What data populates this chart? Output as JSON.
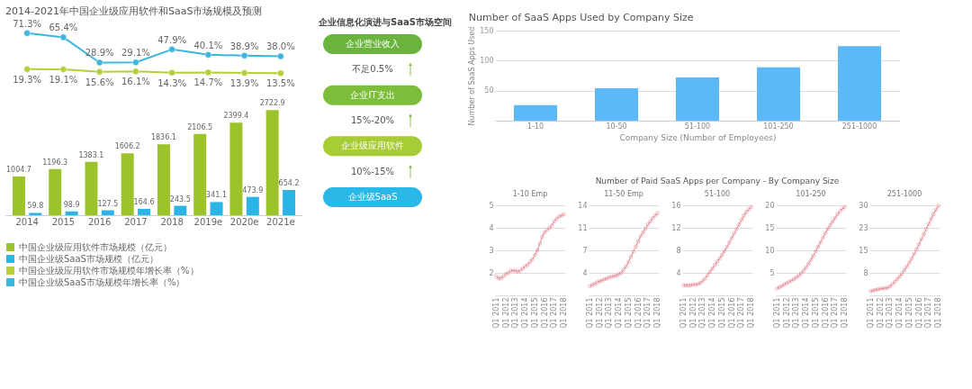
{
  "chart_data": [
    {
      "type": "line",
      "title": "2014-2021年中国企业级应用软件和SaaS市场规模及预测",
      "categories": [
        null,
        null,
        null,
        null,
        null,
        null,
        null,
        null
      ],
      "series": [
        {
          "name": "中国企业级应用软件市场规模年增长率（%）",
          "color": "#b5cf3a",
          "values": [
            19.3,
            19.1,
            15.6,
            16.1,
            14.3,
            14.7,
            13.9,
            13.5
          ],
          "value_labels": [
            "19.3%",
            "19.1%",
            "15.6%",
            "16.1%",
            "14.3%",
            "14.7%",
            "13.9%",
            "13.5%"
          ]
        },
        {
          "name": "中国企业级SaaS市场规模年增长率（%）",
          "color": "#3cb6dc",
          "values": [
            71.3,
            65.4,
            28.9,
            29.1,
            47.9,
            40.1,
            38.9,
            38.0
          ],
          "value_labels": [
            "71.3%",
            "65.4%",
            "28.9%",
            "29.1%",
            "47.9%",
            "40.1%",
            "38.9%",
            "38.0%"
          ]
        }
      ],
      "marker": "circle",
      "tick_labels": false,
      "legend": "bottom"
    },
    {
      "type": "bar",
      "categories": [
        "2014",
        "2015",
        "2016",
        "2017",
        "2018",
        "2019e",
        "2020e",
        "2021e"
      ],
      "series": [
        {
          "name": "中国企业级应用软件市场规模（亿元）",
          "color": "#9cc32b",
          "values": [
            1004.7,
            1196.3,
            1383.1,
            1606.2,
            1836.1,
            2106.5,
            2399.4,
            2722.9
          ]
        },
        {
          "name": "中国企业级SaaS市场规模（亿元）",
          "color": "#2bb5e6",
          "values": [
            59.8,
            98.9,
            127.5,
            164.6,
            243.5,
            341.1,
            473.9,
            654.2
          ]
        }
      ],
      "data_labels": true,
      "legend": "bottom",
      "tick_labels": "x"
    },
    {
      "type": "other",
      "title": "企业信息化演进与SaaS市场空间",
      "annotations": [
        "企业营业收入",
        "不足0.5%",
        "企业IT支出",
        "15%-20%",
        "企业级应用软件",
        "10%-15%",
        "企业级SaaS"
      ],
      "colors": [
        "#6ab43e",
        null,
        "#7cbd3a",
        null,
        "#a8cc35",
        null,
        "#2ab8e8"
      ]
    },
    {
      "type": "bar",
      "title": "Number of SaaS Apps Used by Company Size",
      "categories": [
        "1-10",
        "10-50",
        "51-100",
        "101-250",
        "251-1000"
      ],
      "values": [
        26,
        54,
        72,
        89,
        124
      ],
      "color": "#5cb8f6",
      "ylim": [
        0,
        150
      ],
      "yticks": [
        50,
        100,
        150
      ],
      "xlabel": "Company Size (Number of Employees)",
      "ylabel": "Number of SaaS Apps Used",
      "grid": "y"
    },
    {
      "type": "line",
      "subtitle": "1-10 Emp",
      "categories": [
        "Q1 2011",
        null,
        null,
        null,
        "Q1 2012",
        null,
        null,
        null,
        "Q1 2013",
        null,
        null,
        null,
        "Q1 2014",
        null,
        null,
        null,
        "Q1 2015",
        null,
        null,
        null,
        "Q1 2016",
        null,
        null,
        null,
        "Q1 2017",
        null,
        null,
        null,
        "Q1 2018"
      ],
      "values": [
        1.85,
        1.75,
        1.75,
        1.85,
        1.95,
        2.0,
        2.1,
        2.1,
        2.1,
        2.05,
        2.1,
        2.2,
        2.3,
        2.35,
        2.5,
        2.6,
        2.8,
        3.0,
        3.3,
        3.6,
        3.8,
        3.9,
        4.0,
        4.1,
        4.3,
        4.4,
        4.5,
        4.55,
        4.6
      ],
      "color": "#e2838e",
      "ylim": [
        1,
        5
      ],
      "yticks": [
        2,
        3,
        4,
        5
      ],
      "grid": "y",
      "marker": "circle"
    },
    {
      "type": "line",
      "subtitle": "11-50 Emp",
      "categories": [
        "Q1 2011",
        null,
        null,
        null,
        "Q1 2012",
        null,
        null,
        null,
        "Q1 2013",
        null,
        null,
        null,
        "Q1 2014",
        null,
        null,
        null,
        "Q1 2015",
        null,
        null,
        null,
        "Q1 2016",
        null,
        null,
        null,
        "Q1 2017",
        null,
        null,
        null,
        "Q1 2018"
      ],
      "values": [
        1.4,
        1.6,
        1.8,
        2.0,
        2.2,
        2.3,
        2.5,
        2.6,
        2.8,
        2.9,
        3.0,
        3.1,
        3.3,
        3.5,
        4.0,
        4.5,
        5.2,
        6.0,
        6.8,
        7.6,
        8.4,
        9.2,
        9.8,
        10.4,
        11.0,
        11.5,
        12.0,
        12.4,
        12.8
      ],
      "color": "#e2838e",
      "ylim": [
        0,
        14
      ],
      "yticks": [
        {
          "value": 3.5,
          "label": "4"
        },
        7,
        {
          "value": 10.5,
          "label": "11"
        },
        14
      ],
      "grid": "y",
      "marker": "circle"
    },
    {
      "type": "line",
      "title": "Number of Paid SaaS Apps per Company - By Company Size",
      "subtitle": "51-100",
      "categories": [
        "Q1 2011",
        null,
        null,
        null,
        "Q1 2012",
        null,
        null,
        null,
        "Q1 2013",
        null,
        null,
        null,
        "Q1 2014",
        null,
        null,
        null,
        "Q1 2015",
        null,
        null,
        null,
        "Q1 2016",
        null,
        null,
        null,
        "Q1 2017",
        null,
        null,
        null,
        "Q1 2018"
      ],
      "values": [
        1.8,
        1.8,
        1.8,
        1.8,
        1.9,
        1.9,
        2.0,
        2.2,
        2.6,
        3.0,
        3.6,
        4.2,
        4.8,
        5.4,
        6.0,
        6.6,
        7.2,
        7.9,
        8.6,
        9.4,
        10.2,
        11.0,
        11.8,
        12.6,
        13.4,
        14.2,
        14.8,
        15.3,
        15.7
      ],
      "color": "#e2838e",
      "ylim": [
        0,
        16
      ],
      "yticks": [
        4,
        8,
        12,
        16
      ],
      "grid": "y",
      "marker": "circle"
    },
    {
      "type": "line",
      "subtitle": "101-250",
      "categories": [
        "Q1 2011",
        null,
        null,
        null,
        "Q1 2012",
        null,
        null,
        null,
        "Q1 2013",
        null,
        null,
        null,
        "Q1 2014",
        null,
        null,
        null,
        "Q1 2015",
        null,
        null,
        null,
        "Q1 2016",
        null,
        null,
        null,
        "Q1 2017",
        null,
        null,
        null,
        "Q1 2018"
      ],
      "values": [
        1.5,
        1.8,
        2.1,
        2.4,
        2.7,
        3.0,
        3.3,
        3.6,
        4.0,
        4.4,
        4.9,
        5.5,
        6.2,
        7.0,
        7.9,
        8.8,
        9.8,
        10.8,
        11.8,
        12.8,
        13.8,
        14.8,
        15.6,
        16.4,
        17.2,
        18.0,
        18.7,
        19.2,
        19.6
      ],
      "color": "#e2838e",
      "ylim": [
        0,
        20
      ],
      "yticks": [
        5,
        10,
        15,
        20
      ],
      "grid": "y",
      "marker": "circle"
    },
    {
      "type": "line",
      "subtitle": "251-1000",
      "categories": [
        "Q1 2011",
        null,
        null,
        null,
        "Q1 2012",
        null,
        null,
        null,
        "Q1 2013",
        null,
        null,
        null,
        "Q1 2014",
        null,
        null,
        null,
        "Q1 2015",
        null,
        null,
        null,
        "Q1 2016",
        null,
        null,
        null,
        "Q1 2017",
        null,
        null,
        null,
        "Q1 2018"
      ],
      "values": [
        1.4,
        1.6,
        1.8,
        2.0,
        2.2,
        2.3,
        2.4,
        2.5,
        3.0,
        3.7,
        4.5,
        5.4,
        6.3,
        7.3,
        8.4,
        9.6,
        10.9,
        12.3,
        13.8,
        15.4,
        17.0,
        18.7,
        20.4,
        22.1,
        23.8,
        25.5,
        27.0,
        28.5,
        29.8
      ],
      "color": "#e2838e",
      "ylim": [
        0,
        30
      ],
      "yticks": [
        {
          "value": 7.5,
          "label": "8"
        },
        15,
        {
          "value": 22.5,
          "label": "23"
        },
        30
      ],
      "grid": "y",
      "marker": "circle"
    }
  ]
}
